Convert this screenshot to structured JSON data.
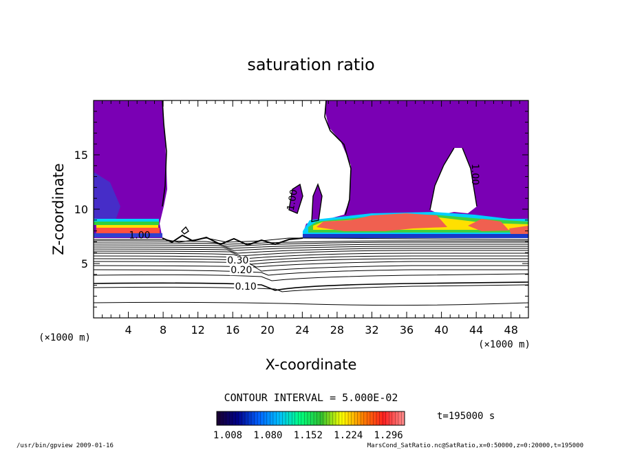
{
  "chart_data": {
    "type": "contour",
    "title": "saturation ratio",
    "xlabel": "X-coordinate",
    "ylabel": "Z-coordinate",
    "x_unit": "(×1000 m)",
    "z_unit": "(×1000 m)",
    "xlim": [
      0,
      50
    ],
    "zlim": [
      0,
      20
    ],
    "x_ticks": [
      "4",
      "8",
      "12",
      "16",
      "20",
      "24",
      "28",
      "32",
      "36",
      "40",
      "44",
      "48"
    ],
    "z_ticks": [
      "5",
      "10",
      "15"
    ],
    "contour_interval_text": "CONTOUR INTERVAL = 5.000E-02",
    "contour_labels": [
      {
        "text": "0.10",
        "x": 17.5,
        "z": 2.6
      },
      {
        "text": "0.20",
        "x": 17.0,
        "z": 4.1
      },
      {
        "text": "0.30",
        "x": 16.6,
        "z": 5.0
      },
      {
        "text": "1.00",
        "x": 5.3,
        "z": 7.3
      },
      {
        "text": "1.00",
        "x": 23.2,
        "z": 10.8
      },
      {
        "text": "1.00",
        "x": 43.5,
        "z": 13.2
      }
    ],
    "colorbar": {
      "ticks": [
        "1.008",
        "1.080",
        "1.152",
        "1.224",
        "1.296"
      ],
      "colors": [
        "#1a0030",
        "#000088",
        "#0060ff",
        "#00c0ff",
        "#00ff80",
        "#30c030",
        "#ffff00",
        "#ff8000",
        "#ff2020",
        "#ff9090"
      ]
    },
    "time_text": "t=195000 s",
    "footer_left": "/usr/bin/gpview  2009-01-16",
    "footer_right": "MarsCond_SatRatio.nc@SatRatio,x=0:50000,z=0:20000,t=195000"
  }
}
